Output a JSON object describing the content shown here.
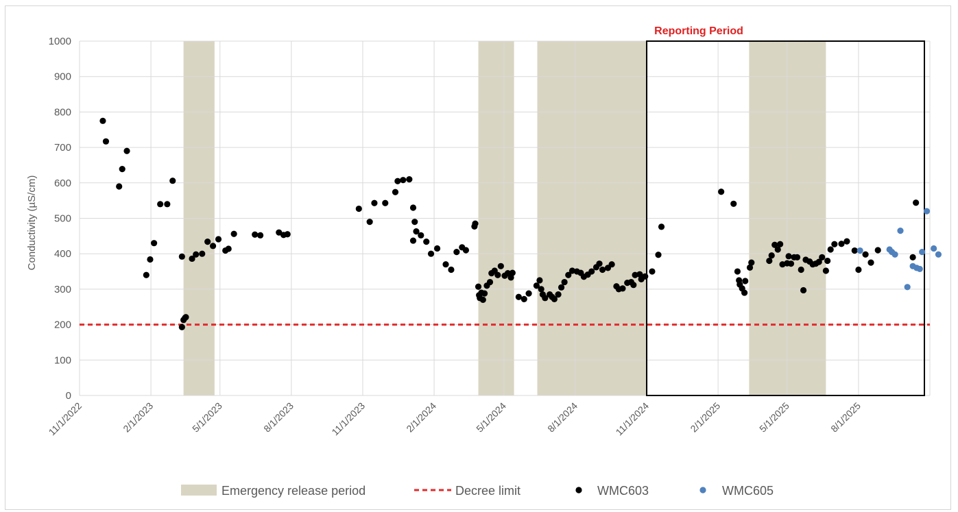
{
  "chart_data": {
    "type": "scatter",
    "title": "",
    "xlabel": "",
    "ylabel": "Conductivity (µS/cm)",
    "ylim": [
      0,
      1000
    ],
    "yticks": [
      0,
      100,
      200,
      300,
      400,
      500,
      600,
      700,
      800,
      900,
      1000
    ],
    "xlim": [
      "2022-11-01",
      "2025-11-01"
    ],
    "xtick_labels": [
      "11/1/2022",
      "2/1/2023",
      "5/1/2023",
      "8/1/2023",
      "11/1/2023",
      "2/1/2024",
      "5/1/2024",
      "8/1/2024",
      "11/1/2024",
      "2/1/2025",
      "5/1/2025",
      "8/1/2025"
    ],
    "grid": true,
    "legend_position": "bottom",
    "emergency_release_periods": [
      {
        "start": "2023-03-15",
        "end": "2023-04-24"
      },
      {
        "start": "2024-03-29",
        "end": "2024-05-14"
      },
      {
        "start": "2024-06-13",
        "end": "2024-11-01"
      },
      {
        "start": "2025-03-13",
        "end": "2025-06-20"
      }
    ],
    "decree_limit": 200,
    "reporting_period": {
      "start": "2024-11-01",
      "end": "2025-11-01",
      "label": "Reporting Period"
    },
    "legend": [
      {
        "key": "emergency",
        "label": "Emergency release period",
        "color": "#d9d5c3"
      },
      {
        "key": "limit",
        "label": "Decree limit",
        "color": "#e32b2b"
      },
      {
        "key": "wmc603",
        "label": "WMC603",
        "color": "#000000"
      },
      {
        "key": "wmc605",
        "label": "WMC605",
        "color": "#4f81bd"
      }
    ],
    "series": [
      {
        "name": "WMC603",
        "color": "#000000",
        "points": [
          [
            "2022-12-01",
            775
          ],
          [
            "2022-12-05",
            717
          ],
          [
            "2022-12-22",
            590
          ],
          [
            "2022-12-26",
            639
          ],
          [
            "2023-01-01",
            690
          ],
          [
            "2023-01-26",
            340
          ],
          [
            "2023-01-31",
            384
          ],
          [
            "2023-02-05",
            430
          ],
          [
            "2023-02-13",
            540
          ],
          [
            "2023-02-22",
            540
          ],
          [
            "2023-03-01",
            606
          ],
          [
            "2023-03-13",
            392
          ],
          [
            "2023-03-13",
            193
          ],
          [
            "2023-03-15",
            213
          ],
          [
            "2023-03-17",
            219
          ],
          [
            "2023-03-18",
            221
          ],
          [
            "2023-03-26",
            386
          ],
          [
            "2023-03-31",
            398
          ],
          [
            "2023-04-08",
            400
          ],
          [
            "2023-04-15",
            434
          ],
          [
            "2023-04-22",
            422
          ],
          [
            "2023-04-29",
            441
          ],
          [
            "2023-05-08",
            409
          ],
          [
            "2023-05-12",
            414
          ],
          [
            "2023-05-19",
            456
          ],
          [
            "2023-06-15",
            454
          ],
          [
            "2023-06-22",
            452
          ],
          [
            "2023-07-16",
            460
          ],
          [
            "2023-07-22",
            453
          ],
          [
            "2023-07-27",
            455
          ],
          [
            "2023-10-27",
            527
          ],
          [
            "2023-11-10",
            490
          ],
          [
            "2023-11-16",
            543
          ],
          [
            "2023-11-30",
            543
          ],
          [
            "2023-12-13",
            574
          ],
          [
            "2023-12-16",
            605
          ],
          [
            "2023-12-23",
            608
          ],
          [
            "2023-12-31",
            610
          ],
          [
            "2024-01-05",
            530
          ],
          [
            "2024-01-07",
            490
          ],
          [
            "2024-01-09",
            463
          ],
          [
            "2024-01-05",
            437
          ],
          [
            "2024-01-15",
            452
          ],
          [
            "2024-01-22",
            434
          ],
          [
            "2024-01-28",
            400
          ],
          [
            "2024-02-05",
            415
          ],
          [
            "2024-02-16",
            370
          ],
          [
            "2024-02-23",
            355
          ],
          [
            "2024-03-01",
            405
          ],
          [
            "2024-03-08",
            418
          ],
          [
            "2024-03-13",
            410
          ],
          [
            "2024-03-24",
            477
          ],
          [
            "2024-03-25",
            485
          ],
          [
            "2024-03-29",
            307
          ],
          [
            "2024-03-30",
            283
          ],
          [
            "2024-03-31",
            275
          ],
          [
            "2024-04-02",
            290
          ],
          [
            "2024-04-04",
            270
          ],
          [
            "2024-04-06",
            288
          ],
          [
            "2024-04-09",
            310
          ],
          [
            "2024-04-13",
            320
          ],
          [
            "2024-04-15",
            345
          ],
          [
            "2024-04-19",
            352
          ],
          [
            "2024-04-23",
            340
          ],
          [
            "2024-04-27",
            365
          ],
          [
            "2024-05-02",
            338
          ],
          [
            "2024-05-06",
            345
          ],
          [
            "2024-05-10",
            333
          ],
          [
            "2024-05-12",
            346
          ],
          [
            "2024-05-20",
            278
          ],
          [
            "2024-05-27",
            272
          ],
          [
            "2024-06-02",
            288
          ],
          [
            "2024-06-12",
            310
          ],
          [
            "2024-06-16",
            325
          ],
          [
            "2024-06-18",
            300
          ],
          [
            "2024-06-20",
            285
          ],
          [
            "2024-06-23",
            275
          ],
          [
            "2024-06-29",
            285
          ],
          [
            "2024-07-02",
            278
          ],
          [
            "2024-07-05",
            272
          ],
          [
            "2024-07-10",
            285
          ],
          [
            "2024-07-14",
            305
          ],
          [
            "2024-07-18",
            320
          ],
          [
            "2024-07-23",
            340
          ],
          [
            "2024-07-28",
            352
          ],
          [
            "2024-08-03",
            350
          ],
          [
            "2024-08-08",
            346
          ],
          [
            "2024-08-12",
            335
          ],
          [
            "2024-08-17",
            341
          ],
          [
            "2024-08-22",
            350
          ],
          [
            "2024-08-28",
            362
          ],
          [
            "2024-09-01",
            372
          ],
          [
            "2024-09-05",
            355
          ],
          [
            "2024-09-12",
            360
          ],
          [
            "2024-09-17",
            370
          ],
          [
            "2024-09-23",
            308
          ],
          [
            "2024-09-26",
            300
          ],
          [
            "2024-10-01",
            302
          ],
          [
            "2024-10-07",
            318
          ],
          [
            "2024-10-12",
            320
          ],
          [
            "2024-10-15",
            312
          ],
          [
            "2024-10-17",
            340
          ],
          [
            "2024-10-23",
            342
          ],
          [
            "2024-10-25",
            328
          ],
          [
            "2024-10-30",
            336
          ],
          [
            "2024-11-08",
            350
          ],
          [
            "2024-11-16",
            397
          ],
          [
            "2024-11-20",
            476
          ],
          [
            "2025-02-05",
            575
          ],
          [
            "2025-02-21",
            541
          ],
          [
            "2025-02-26",
            350
          ],
          [
            "2025-02-28",
            325
          ],
          [
            "2025-03-01",
            313
          ],
          [
            "2025-03-04",
            302
          ],
          [
            "2025-03-07",
            290
          ],
          [
            "2025-03-08",
            323
          ],
          [
            "2025-03-14",
            361
          ],
          [
            "2025-03-16",
            375
          ],
          [
            "2025-04-08",
            380
          ],
          [
            "2025-04-11",
            395
          ],
          [
            "2025-04-15",
            425
          ],
          [
            "2025-04-19",
            412
          ],
          [
            "2025-04-22",
            427
          ],
          [
            "2025-04-25",
            370
          ],
          [
            "2025-05-01",
            373
          ],
          [
            "2025-05-03",
            393
          ],
          [
            "2025-05-06",
            372
          ],
          [
            "2025-05-10",
            390
          ],
          [
            "2025-05-14",
            390
          ],
          [
            "2025-05-19",
            355
          ],
          [
            "2025-05-22",
            297
          ],
          [
            "2025-05-25",
            383
          ],
          [
            "2025-05-30",
            378
          ],
          [
            "2025-06-03",
            370
          ],
          [
            "2025-06-07",
            372
          ],
          [
            "2025-06-11",
            377
          ],
          [
            "2025-06-15",
            390
          ],
          [
            "2025-06-20",
            352
          ],
          [
            "2025-06-22",
            380
          ],
          [
            "2025-06-26",
            412
          ],
          [
            "2025-07-01",
            427
          ],
          [
            "2025-07-10",
            428
          ],
          [
            "2025-07-17",
            435
          ],
          [
            "2025-07-27",
            409
          ],
          [
            "2025-08-01",
            355
          ],
          [
            "2025-08-10",
            398
          ],
          [
            "2025-08-17",
            375
          ],
          [
            "2025-08-26",
            410
          ],
          [
            "2025-10-10",
            390
          ],
          [
            "2025-10-14",
            544
          ]
        ]
      },
      {
        "name": "WMC605",
        "color": "#4f81bd",
        "points": [
          [
            "2025-08-03",
            409
          ],
          [
            "2025-09-10",
            412
          ],
          [
            "2025-09-13",
            405
          ],
          [
            "2025-09-17",
            398
          ],
          [
            "2025-09-24",
            465
          ],
          [
            "2025-10-03",
            306
          ],
          [
            "2025-10-10",
            365
          ],
          [
            "2025-10-15",
            360
          ],
          [
            "2025-10-19",
            357
          ],
          [
            "2025-10-22",
            405
          ],
          [
            "2025-10-28",
            520
          ],
          [
            "2025-11-06",
            415
          ],
          [
            "2025-11-12",
            398
          ]
        ]
      }
    ]
  }
}
